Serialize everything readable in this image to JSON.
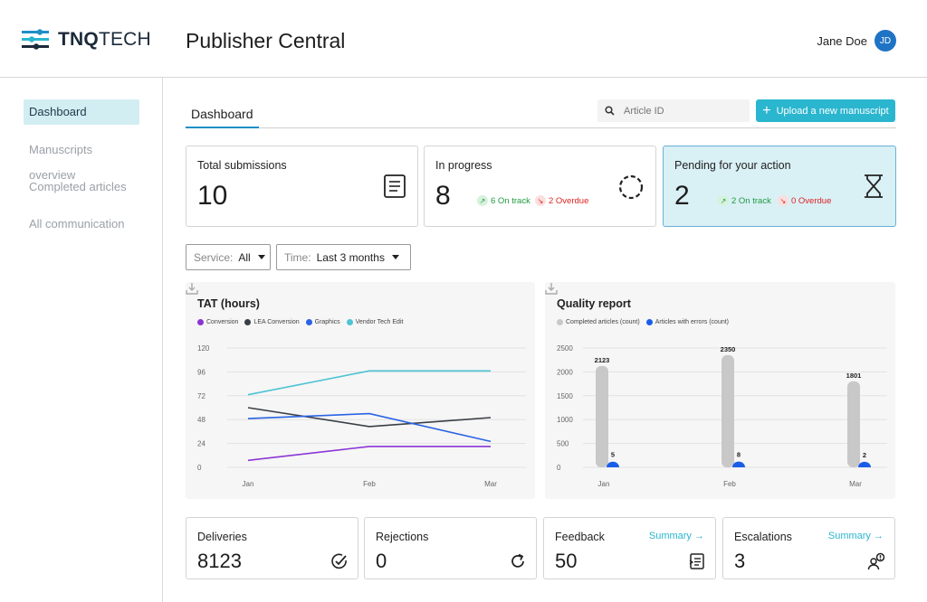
{
  "header": {
    "logo_bold": "TNQ",
    "logo_light": "TECH",
    "app_title": "Publisher Central",
    "user_name": "Jane Doe",
    "user_initials": "JD"
  },
  "sidebar": {
    "items": [
      {
        "label": "Dashboard",
        "active": true
      },
      {
        "label": "Manuscripts overview",
        "active": false
      },
      {
        "label": "Completed articles",
        "active": false
      },
      {
        "label": "All communication",
        "active": false
      }
    ]
  },
  "tabs": {
    "active": "Dashboard"
  },
  "search": {
    "placeholder": "Article ID",
    "value": ""
  },
  "upload_button": {
    "label": "Upload a new manuscript"
  },
  "summary_cards": [
    {
      "title": "Total submissions",
      "value": "10",
      "icon": "document-icon"
    },
    {
      "title": "In progress",
      "value": "8",
      "on_track": "6 On track",
      "overdue": "2 Overdue",
      "icon": "progress-circle-icon"
    },
    {
      "title": "Pending for your action",
      "value": "2",
      "on_track": "2 On track",
      "overdue": "0 Overdue",
      "icon": "hourglass-icon"
    }
  ],
  "filters": {
    "service": {
      "label": "Service:",
      "value": "All"
    },
    "time": {
      "label": "Time:",
      "value": "Last 3 months"
    }
  },
  "colors": {
    "accent": "#2bb6cf",
    "conversion": "#8b35d6",
    "lea_conversion": "#3a3f47",
    "graphics": "#2a63e4",
    "vendor_tech_edit": "#4ec3d4",
    "completed": "#c8c8c8",
    "errors": "#1a5ee8"
  },
  "chart_data": [
    {
      "type": "line",
      "title": "TAT (hours)",
      "categories": [
        "Jan",
        "Feb",
        "Mar"
      ],
      "ylim": [
        0,
        120
      ],
      "yticks": [
        "0",
        "24",
        "48",
        "72",
        "96",
        "120"
      ],
      "grid": true,
      "legend": "top-left",
      "series": [
        {
          "name": "Conversion",
          "values": [
            7,
            21,
            21
          ]
        },
        {
          "name": "LEA Conversion",
          "values": [
            60,
            41,
            50
          ]
        },
        {
          "name": "Graphics",
          "values": [
            49,
            54,
            26
          ]
        },
        {
          "name": "Vendor Tech Edit",
          "values": [
            73,
            97,
            97
          ]
        }
      ]
    },
    {
      "type": "bar",
      "title": "Quality report",
      "categories": [
        "Jan",
        "Feb",
        "Mar"
      ],
      "ylim": [
        0,
        2500
      ],
      "yticks": [
        "0",
        "500",
        "1000",
        "1500",
        "2000",
        "2500"
      ],
      "grid": true,
      "legend": "top-left",
      "series": [
        {
          "name": "Completed articles (count)",
          "values": [
            2123,
            2350,
            1801
          ]
        },
        {
          "name": "Articles with errors (count)",
          "values": [
            5,
            8,
            2
          ]
        }
      ]
    }
  ],
  "bottom_cards": [
    {
      "title": "Deliveries",
      "value": "8123",
      "icon": "check-circle-icon"
    },
    {
      "title": "Rejections",
      "value": "0",
      "icon": "refresh-icon"
    },
    {
      "title": "Feedback",
      "value": "50",
      "link": "Summary →",
      "icon": "feedback-list-icon"
    },
    {
      "title": "Escalations",
      "value": "3",
      "link": "Summary →",
      "icon": "escalation-user-icon"
    }
  ]
}
